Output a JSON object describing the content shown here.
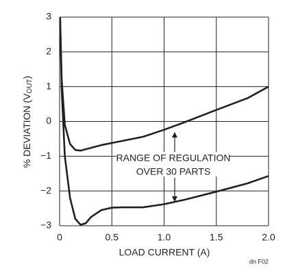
{
  "chart_data": {
    "type": "line",
    "xlabel": "LOAD CURRENT (A)",
    "ylabel": [
      "% DEVIATION (V",
      "OUT",
      ")"
    ],
    "annotation": [
      "RANGE OF REGULATION",
      "OVER 30 PARTS"
    ],
    "figure_id": "dn F02",
    "x": [
      0.005,
      0.02,
      0.05,
      0.1,
      0.15,
      0.2,
      0.25,
      0.3,
      0.4,
      0.5,
      0.6,
      0.8,
      1.0,
      1.2,
      1.5,
      1.8,
      2.0
    ],
    "series": [
      {
        "color": "#231f20",
        "values": [
          3.0,
          1.2,
          -0.1,
          -0.65,
          -0.82,
          -0.84,
          -0.8,
          -0.76,
          -0.68,
          -0.62,
          -0.56,
          -0.44,
          -0.24,
          -0.02,
          0.33,
          0.67,
          1.0
        ]
      },
      {
        "color": "#231f20",
        "values": [
          2.9,
          0.9,
          -1.0,
          -2.2,
          -2.8,
          -2.97,
          -2.93,
          -2.75,
          -2.55,
          -2.48,
          -2.47,
          -2.47,
          -2.38,
          -2.25,
          -2.02,
          -1.78,
          -1.57
        ]
      }
    ],
    "xlim": [
      0,
      2.0
    ],
    "ylim": [
      -3,
      3
    ],
    "xticks": [
      0,
      0.5,
      {
        "value": 1.0,
        "label": "1.0"
      },
      1.5,
      {
        "value": 2.0,
        "label": "2.0"
      }
    ],
    "yticks": [
      {
        "value": -3,
        "label": "−3"
      },
      {
        "value": -2,
        "label": "−2"
      },
      {
        "value": -1,
        "label": "−1"
      },
      0,
      1,
      2,
      3
    ],
    "grid": true
  }
}
